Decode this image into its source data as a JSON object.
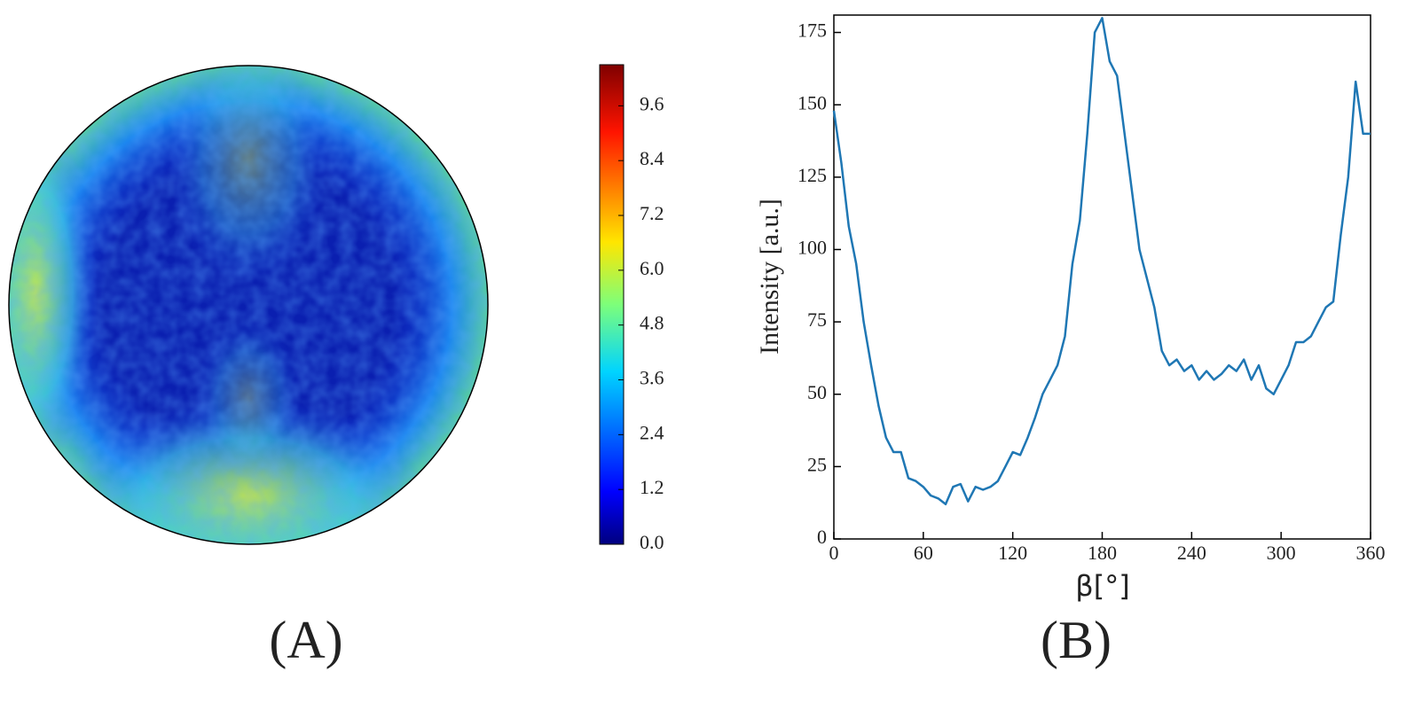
{
  "chart_data": [
    {
      "type": "heatmap",
      "caption": "(A)",
      "clim": [
        0,
        10.5
      ],
      "cticks": [
        {
          "value": 0,
          "label": "0.0"
        },
        {
          "value": 1.2,
          "label": "1.2"
        },
        {
          "value": 2.4,
          "label": "2.4"
        },
        {
          "value": 3.6,
          "label": "3.6"
        },
        {
          "value": 4.8,
          "label": "4.8"
        },
        {
          "value": 6,
          "label": "6.0"
        },
        {
          "value": 7.2,
          "label": "7.2"
        },
        {
          "value": 8.4,
          "label": "8.4"
        },
        {
          "value": 9.6,
          "label": "9.6"
        }
      ]
    },
    {
      "type": "line",
      "caption": "(B)",
      "y_label": "Intensity [a.u.]",
      "x_label": "β[°]",
      "xlim": [
        0,
        360
      ],
      "ylim": [
        0,
        181
      ],
      "xticks": [
        0,
        60,
        120,
        180,
        240,
        300,
        360
      ],
      "yticks": [
        0,
        25,
        50,
        75,
        100,
        125,
        150,
        175
      ],
      "x": [
        0,
        5,
        10,
        15,
        20,
        25,
        30,
        35,
        40,
        45,
        50,
        55,
        60,
        65,
        70,
        75,
        80,
        85,
        90,
        95,
        100,
        105,
        110,
        115,
        120,
        125,
        130,
        135,
        140,
        145,
        150,
        155,
        160,
        165,
        170,
        175,
        180,
        185,
        190,
        195,
        200,
        205,
        210,
        215,
        220,
        225,
        230,
        235,
        240,
        245,
        250,
        255,
        260,
        265,
        270,
        275,
        280,
        285,
        290,
        295,
        300,
        305,
        310,
        315,
        320,
        325,
        330,
        335,
        340,
        345,
        350,
        355,
        360
      ],
      "series": [
        {
          "color": "#1f77b4",
          "values": [
            148,
            130,
            108,
            95,
            75,
            60,
            46,
            35,
            30,
            30,
            21,
            20,
            18,
            15,
            14,
            12,
            18,
            19,
            13,
            18,
            17,
            18,
            20,
            25,
            30,
            29,
            35,
            42,
            50,
            55,
            60,
            70,
            95,
            110,
            140,
            175,
            180,
            165,
            160,
            140,
            120,
            100,
            90,
            80,
            65,
            60,
            62,
            58,
            60,
            55,
            58,
            55,
            57,
            60,
            58,
            62,
            55,
            60,
            52,
            50,
            55,
            60,
            68,
            68,
            70,
            75,
            80,
            82,
            105,
            125,
            158,
            140,
            140
          ]
        }
      ]
    }
  ]
}
